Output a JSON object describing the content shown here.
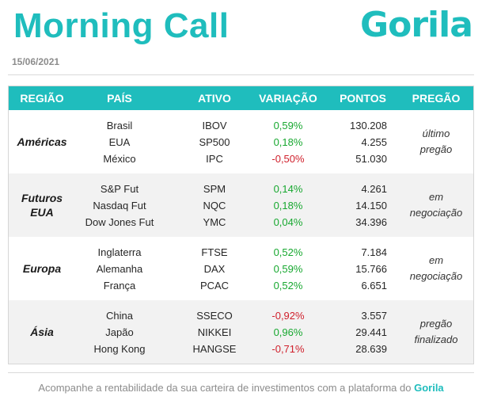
{
  "header": {
    "title": "Morning Call",
    "logo": "Gorila",
    "date": "15/06/2021"
  },
  "table": {
    "columns": [
      "REGIÃO",
      "PAÍS",
      "ATIVO",
      "VARIAÇÃO",
      "PONTOS",
      "PREGÃO"
    ],
    "groups": [
      {
        "region_lines": [
          "Américas"
        ],
        "status_lines": [
          "último",
          "pregão"
        ],
        "rows": [
          {
            "country": "Brasil",
            "asset": "IBOV",
            "change": "0,59%",
            "trend": "up",
            "points": "130.208"
          },
          {
            "country": "EUA",
            "asset": "SP500",
            "change": "0,18%",
            "trend": "up",
            "points": "4.255"
          },
          {
            "country": "México",
            "asset": "IPC",
            "change": "-0,50%",
            "trend": "down",
            "points": "51.030"
          }
        ]
      },
      {
        "region_lines": [
          "Futuros",
          "EUA"
        ],
        "status_lines": [
          "em",
          "negociação"
        ],
        "rows": [
          {
            "country": "S&P Fut",
            "asset": "SPM",
            "change": "0,14%",
            "trend": "up",
            "points": "4.261"
          },
          {
            "country": "Nasdaq Fut",
            "asset": "NQC",
            "change": "0,18%",
            "trend": "up",
            "points": "14.150"
          },
          {
            "country": "Dow Jones Fut",
            "asset": "YMC",
            "change": "0,04%",
            "trend": "up",
            "points": "34.396"
          }
        ]
      },
      {
        "region_lines": [
          "Europa"
        ],
        "status_lines": [
          "em",
          "negociação"
        ],
        "rows": [
          {
            "country": "Inglaterra",
            "asset": "FTSE",
            "change": "0,52%",
            "trend": "up",
            "points": "7.184"
          },
          {
            "country": "Alemanha",
            "asset": "DAX",
            "change": "0,59%",
            "trend": "up",
            "points": "15.766"
          },
          {
            "country": "França",
            "asset": "PCAC",
            "change": "0,52%",
            "trend": "up",
            "points": "6.651"
          }
        ]
      },
      {
        "region_lines": [
          "Ásia"
        ],
        "status_lines": [
          "pregão",
          "finalizado"
        ],
        "rows": [
          {
            "country": "China",
            "asset": "SSECO",
            "change": "-0,92%",
            "trend": "down",
            "points": "3.557"
          },
          {
            "country": "Japão",
            "asset": "NIKKEI",
            "change": "0,96%",
            "trend": "up",
            "points": "29.441"
          },
          {
            "country": "Hong Kong",
            "asset": "HANGSE",
            "change": "-0,71%",
            "trend": "down",
            "points": "28.639"
          }
        ]
      }
    ]
  },
  "footer": {
    "text": "Acompanhe a rentabilidade da sua carteira de investimentos com a plataforma do ",
    "brand": "Gorila"
  },
  "colors": {
    "accent": "#1fbdbd",
    "positive": "#18a830",
    "negative": "#d0202c",
    "row_shade": "#f2f2f2"
  }
}
